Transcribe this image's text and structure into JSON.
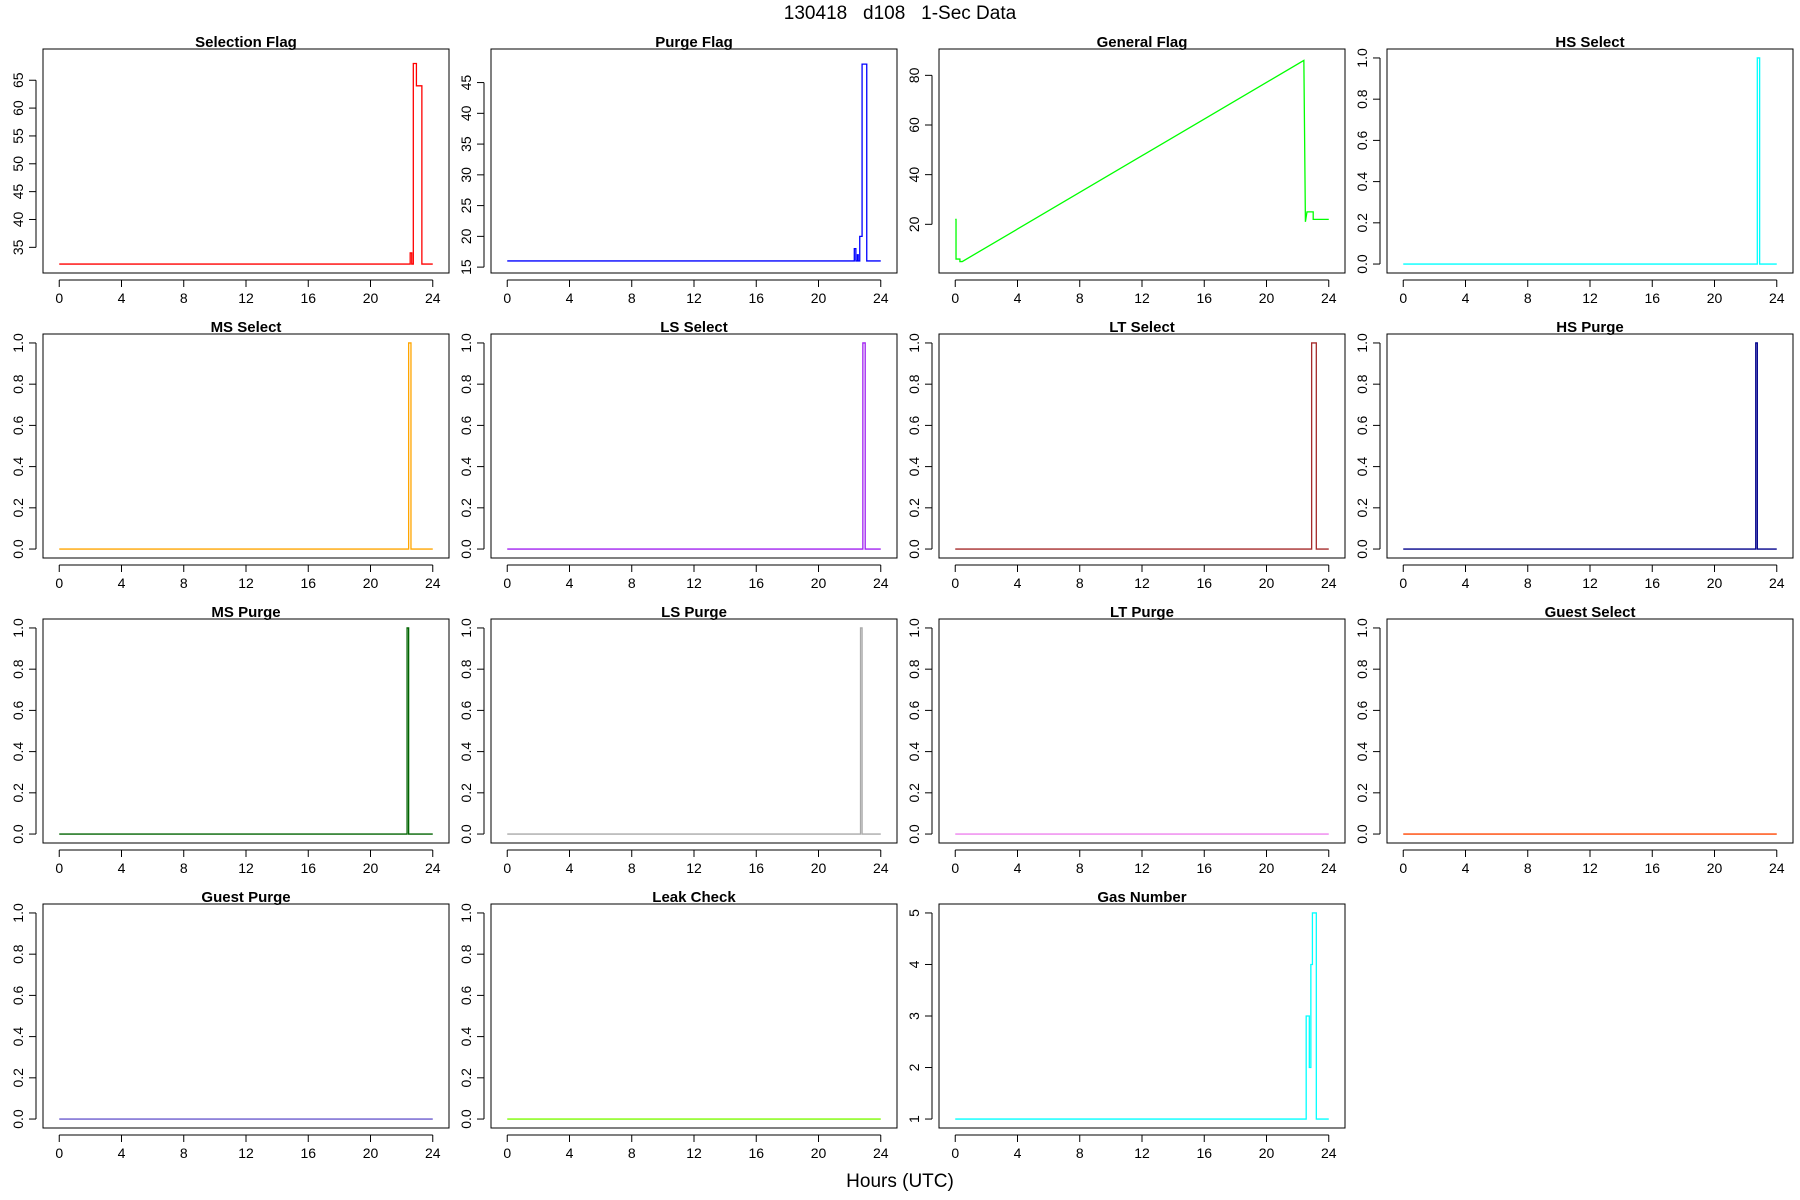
{
  "figure": {
    "title": "130418   d108   1-Sec Data",
    "xlabel": "Hours (UTC)"
  },
  "chart_data": [
    {
      "type": "line",
      "title": "Selection Flag",
      "color": "#ff0000",
      "xlim": [
        0,
        24
      ],
      "ylim": [
        32,
        69
      ],
      "x_ticks": [
        0,
        4,
        8,
        12,
        16,
        20,
        24
      ],
      "y_ticks": [
        35,
        40,
        45,
        50,
        55,
        60,
        65
      ],
      "series": [
        {
          "x": [
            0,
            22.55,
            22.55,
            22.65,
            22.65,
            22.75,
            22.75,
            22.95,
            22.95,
            23.1,
            23.1,
            23.3,
            23.3,
            24
          ],
          "y": [
            32,
            32,
            34,
            34,
            32,
            32,
            68,
            68,
            64,
            64,
            64,
            64,
            32,
            32
          ]
        }
      ]
    },
    {
      "type": "line",
      "title": "Purge Flag",
      "color": "#0000ff",
      "xlim": [
        0,
        24
      ],
      "ylim": [
        15.5,
        49
      ],
      "x_ticks": [
        0,
        4,
        8,
        12,
        16,
        20,
        24
      ],
      "y_ticks": [
        15,
        20,
        25,
        30,
        35,
        40,
        45
      ],
      "series": [
        {
          "x": [
            0,
            22.3,
            22.3,
            22.4,
            22.4,
            22.5,
            22.5,
            22.55,
            22.55,
            22.65,
            22.65,
            22.75,
            22.75,
            22.8,
            22.8,
            23.1,
            23.1,
            24
          ],
          "y": [
            16,
            16,
            18,
            18,
            16,
            16,
            17,
            17,
            16,
            16,
            20,
            20,
            20,
            20,
            48,
            48,
            16,
            16
          ]
        }
      ]
    },
    {
      "type": "line",
      "title": "General Flag",
      "color": "#00ff00",
      "xlim": [
        0,
        24
      ],
      "ylim": [
        4,
        87
      ],
      "x_ticks": [
        0,
        4,
        8,
        12,
        16,
        20,
        24
      ],
      "y_ticks": [
        20,
        40,
        60,
        80
      ],
      "series": [
        {
          "x": [
            0,
            0.05,
            0.05,
            0.3,
            0.3,
            0.45,
            22.4,
            22.4,
            22.5,
            22.5,
            22.6,
            22.6,
            23,
            23,
            23.3,
            23.3,
            24
          ],
          "y": [
            22,
            22,
            6,
            6,
            5,
            5,
            86,
            86,
            21,
            21,
            25,
            25,
            25,
            22,
            22,
            22,
            22
          ]
        }
      ]
    },
    {
      "type": "line",
      "title": "HS Select",
      "color": "#00ffff",
      "xlim": [
        0,
        24
      ],
      "ylim": [
        0,
        1
      ],
      "x_ticks": [
        0,
        4,
        8,
        12,
        16,
        20,
        24
      ],
      "y_ticks": [
        0.0,
        0.2,
        0.4,
        0.6,
        0.8,
        1.0
      ],
      "series": [
        {
          "x": [
            0,
            22.75,
            22.75,
            22.9,
            22.9,
            24
          ],
          "y": [
            0,
            0,
            1,
            1,
            0,
            0
          ]
        }
      ]
    },
    {
      "type": "line",
      "title": "MS Select",
      "color": "#ffa500",
      "xlim": [
        0,
        24
      ],
      "ylim": [
        0,
        1
      ],
      "x_ticks": [
        0,
        4,
        8,
        12,
        16,
        20,
        24
      ],
      "y_ticks": [
        0.0,
        0.2,
        0.4,
        0.6,
        0.8,
        1.0
      ],
      "series": [
        {
          "x": [
            0,
            22.45,
            22.45,
            22.6,
            22.6,
            24
          ],
          "y": [
            0,
            0,
            1,
            1,
            0,
            0
          ]
        }
      ]
    },
    {
      "type": "line",
      "title": "LS Select",
      "color": "#a020f0",
      "xlim": [
        0,
        24
      ],
      "ylim": [
        0,
        1
      ],
      "x_ticks": [
        0,
        4,
        8,
        12,
        16,
        20,
        24
      ],
      "y_ticks": [
        0.0,
        0.2,
        0.4,
        0.6,
        0.8,
        1.0
      ],
      "series": [
        {
          "x": [
            0,
            22.85,
            22.85,
            23.0,
            23.0,
            24
          ],
          "y": [
            0,
            0,
            1,
            1,
            0,
            0
          ]
        }
      ]
    },
    {
      "type": "line",
      "title": "LT Select",
      "color": "#a52a2a",
      "xlim": [
        0,
        24
      ],
      "ylim": [
        0,
        1
      ],
      "x_ticks": [
        0,
        4,
        8,
        12,
        16,
        20,
        24
      ],
      "y_ticks": [
        0.0,
        0.2,
        0.4,
        0.6,
        0.8,
        1.0
      ],
      "series": [
        {
          "x": [
            0,
            22.9,
            22.9,
            23.2,
            23.2,
            24
          ],
          "y": [
            0,
            0,
            1,
            1,
            0,
            0
          ]
        }
      ]
    },
    {
      "type": "line",
      "title": "HS Purge",
      "color": "#00008b",
      "xlim": [
        0,
        24
      ],
      "ylim": [
        0,
        1
      ],
      "x_ticks": [
        0,
        4,
        8,
        12,
        16,
        20,
        24
      ],
      "y_ticks": [
        0.0,
        0.2,
        0.4,
        0.6,
        0.8,
        1.0
      ],
      "series": [
        {
          "x": [
            0,
            22.65,
            22.65,
            22.75,
            22.75,
            24
          ],
          "y": [
            0,
            0,
            1,
            1,
            0,
            0
          ]
        }
      ]
    },
    {
      "type": "line",
      "title": "MS Purge",
      "color": "#006400",
      "xlim": [
        0,
        24
      ],
      "ylim": [
        0,
        1
      ],
      "x_ticks": [
        0,
        4,
        8,
        12,
        16,
        20,
        24
      ],
      "y_ticks": [
        0.0,
        0.2,
        0.4,
        0.6,
        0.8,
        1.0
      ],
      "series": [
        {
          "x": [
            0,
            22.35,
            22.35,
            22.45,
            22.45,
            24
          ],
          "y": [
            0,
            0,
            1,
            1,
            0,
            0
          ]
        }
      ]
    },
    {
      "type": "line",
      "title": "LS Purge",
      "color": "#a9a9a9",
      "xlim": [
        0,
        24
      ],
      "ylim": [
        0,
        1
      ],
      "x_ticks": [
        0,
        4,
        8,
        12,
        16,
        20,
        24
      ],
      "y_ticks": [
        0.0,
        0.2,
        0.4,
        0.6,
        0.8,
        1.0
      ],
      "series": [
        {
          "x": [
            0,
            22.7,
            22.7,
            22.8,
            22.8,
            24
          ],
          "y": [
            0,
            0,
            1,
            1,
            0,
            0
          ]
        }
      ]
    },
    {
      "type": "line",
      "title": "LT Purge",
      "color": "#ee82ee",
      "xlim": [
        0,
        24
      ],
      "ylim": [
        0,
        1
      ],
      "x_ticks": [
        0,
        4,
        8,
        12,
        16,
        20,
        24
      ],
      "y_ticks": [
        0.0,
        0.2,
        0.4,
        0.6,
        0.8,
        1.0
      ],
      "series": [
        {
          "x": [
            0,
            24
          ],
          "y": [
            0,
            0
          ]
        }
      ]
    },
    {
      "type": "line",
      "title": "Guest Select",
      "color": "#ff4500",
      "xlim": [
        0,
        24
      ],
      "ylim": [
        0,
        1
      ],
      "x_ticks": [
        0,
        4,
        8,
        12,
        16,
        20,
        24
      ],
      "y_ticks": [
        0.0,
        0.2,
        0.4,
        0.6,
        0.8,
        1.0
      ],
      "series": [
        {
          "x": [
            0,
            24
          ],
          "y": [
            0,
            0
          ]
        }
      ]
    },
    {
      "type": "line",
      "title": "Guest Purge",
      "color": "#6a5acd",
      "xlim": [
        0,
        24
      ],
      "ylim": [
        0,
        1
      ],
      "x_ticks": [
        0,
        4,
        8,
        12,
        16,
        20,
        24
      ],
      "y_ticks": [
        0.0,
        0.2,
        0.4,
        0.6,
        0.8,
        1.0
      ],
      "series": [
        {
          "x": [
            0,
            24
          ],
          "y": [
            0,
            0
          ]
        }
      ]
    },
    {
      "type": "line",
      "title": "Leak Check",
      "color": "#7cfc00",
      "xlim": [
        0,
        24
      ],
      "ylim": [
        0,
        1
      ],
      "x_ticks": [
        0,
        4,
        8,
        12,
        16,
        20,
        24
      ],
      "y_ticks": [
        0.0,
        0.2,
        0.4,
        0.6,
        0.8,
        1.0
      ],
      "series": [
        {
          "x": [
            0,
            24
          ],
          "y": [
            0,
            0
          ]
        }
      ]
    },
    {
      "type": "line",
      "title": "Gas Number",
      "color": "#00ffff",
      "xlim": [
        0,
        24
      ],
      "ylim": [
        1,
        5
      ],
      "x_ticks": [
        0,
        4,
        8,
        12,
        16,
        20,
        24
      ],
      "y_ticks": [
        1,
        2,
        3,
        4,
        5
      ],
      "series": [
        {
          "x": [
            0,
            22.55,
            22.55,
            22.75,
            22.75,
            22.85,
            22.85,
            22.95,
            22.95,
            23.05,
            23.05,
            23.2,
            23.2,
            24
          ],
          "y": [
            1,
            1,
            3,
            3,
            2,
            2,
            4,
            4,
            5,
            5,
            5,
            5,
            1,
            1
          ]
        }
      ]
    }
  ]
}
